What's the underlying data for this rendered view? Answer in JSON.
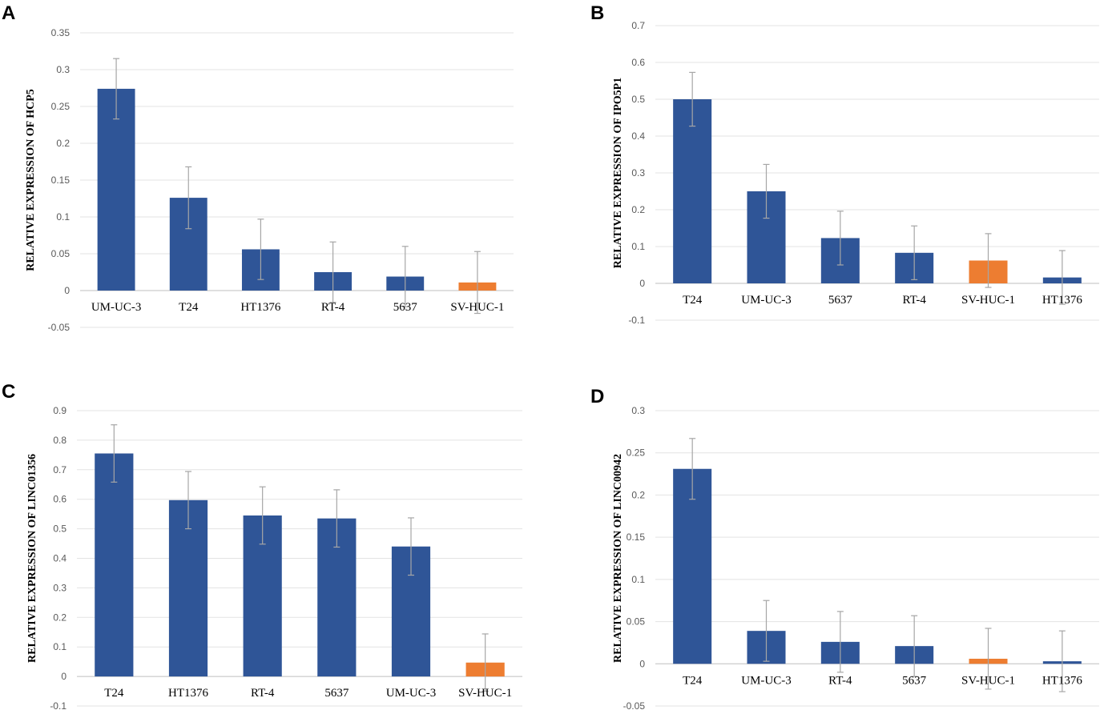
{
  "colors": {
    "primary": "#2f5597",
    "control": "#ed7d31"
  },
  "chart_data": [
    {
      "type": "bar",
      "panel": "A",
      "ylabel": "RELATIVE EXPRESSION OF HCP5",
      "categories": [
        "UM-UC-3",
        "T24",
        "HT1376",
        "RT-4",
        "5637",
        "SV-HUC-1"
      ],
      "values": [
        0.274,
        0.126,
        0.056,
        0.025,
        0.019,
        0.011
      ],
      "errors": [
        0.041,
        0.042,
        0.041,
        0.041,
        0.041,
        0.042
      ],
      "highlight": [
        false,
        false,
        false,
        false,
        false,
        true
      ],
      "ylim": [
        -0.05,
        0.35
      ],
      "yticks": [
        -0.05,
        0,
        0.05,
        0.1,
        0.15,
        0.2,
        0.25,
        0.3,
        0.35
      ],
      "ytick_labels": [
        "-0.05",
        "0",
        "0.05",
        "0.1",
        "0.15",
        "0.2",
        "0.25",
        "0.3",
        "0.35"
      ],
      "grid": true
    },
    {
      "type": "bar",
      "panel": "B",
      "ylabel": "RELATIVE EXPRESSION OF IPO5P1",
      "categories": [
        "T24",
        "UM-UC-3",
        "5637",
        "RT-4",
        "SV-HUC-1",
        "HT1376"
      ],
      "values": [
        0.5,
        0.25,
        0.123,
        0.083,
        0.062,
        0.016
      ],
      "errors": [
        0.073,
        0.073,
        0.073,
        0.073,
        0.073,
        0.073
      ],
      "highlight": [
        false,
        false,
        false,
        false,
        true,
        false
      ],
      "ylim": [
        -0.1,
        0.7
      ],
      "yticks": [
        -0.1,
        0,
        0.1,
        0.2,
        0.3,
        0.4,
        0.5,
        0.6,
        0.7
      ],
      "ytick_labels": [
        "-0.1",
        "0",
        "0.1",
        "0.2",
        "0.3",
        "0.4",
        "0.5",
        "0.6",
        "0.7"
      ],
      "grid": true
    },
    {
      "type": "bar",
      "panel": "C",
      "ylabel": "RELATIVE EXPRESSION OF LINC01356",
      "categories": [
        "T24",
        "HT1376",
        "RT-4",
        "5637",
        "UM-UC-3",
        "SV-HUC-1"
      ],
      "values": [
        0.755,
        0.597,
        0.545,
        0.535,
        0.44,
        0.047
      ],
      "errors": [
        0.097,
        0.097,
        0.097,
        0.097,
        0.097,
        0.097
      ],
      "highlight": [
        false,
        false,
        false,
        false,
        false,
        true
      ],
      "ylim": [
        -0.1,
        0.9
      ],
      "yticks": [
        -0.1,
        0,
        0.1,
        0.2,
        0.3,
        0.4,
        0.5,
        0.6,
        0.7,
        0.8,
        0.9
      ],
      "ytick_labels": [
        "-0.1",
        "0",
        "0.1",
        "0.2",
        "0.3",
        "0.4",
        "0.5",
        "0.6",
        "0.7",
        "0.8",
        "0.9"
      ],
      "grid": true
    },
    {
      "type": "bar",
      "panel": "D",
      "ylabel": "RELATIVE EXPRESSION OF LINC00942",
      "categories": [
        "T24",
        "UM-UC-3",
        "RT-4",
        "5637",
        "SV-HUC-1",
        "HT1376"
      ],
      "values": [
        0.231,
        0.039,
        0.026,
        0.021,
        0.006,
        0.003
      ],
      "errors": [
        0.036,
        0.036,
        0.036,
        0.036,
        0.036,
        0.036
      ],
      "highlight": [
        false,
        false,
        false,
        false,
        true,
        false
      ],
      "ylim": [
        -0.05,
        0.3
      ],
      "yticks": [
        -0.05,
        0,
        0.05,
        0.1,
        0.15,
        0.2,
        0.25,
        0.3
      ],
      "ytick_labels": [
        "-0.05",
        "0",
        "0.05",
        "0.1",
        "0.15",
        "0.2",
        "0.25",
        "0.3"
      ],
      "grid": true
    }
  ]
}
